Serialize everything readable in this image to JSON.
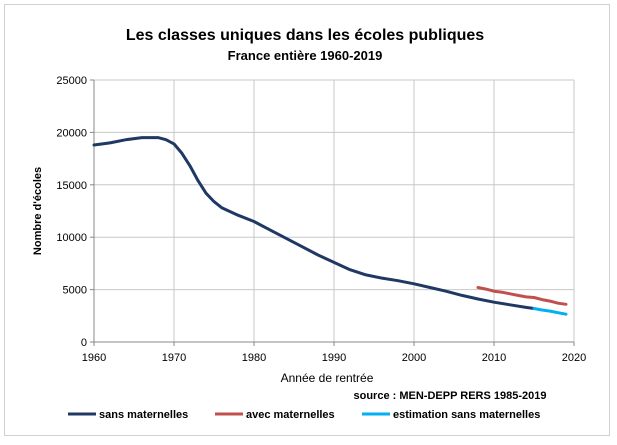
{
  "chart_data": {
    "type": "line",
    "title": "Les classes uniques dans les écoles publiques",
    "subtitle": "France entière 1960-2019",
    "xlabel": "Année de rentrée",
    "ylabel": "Nombre d'écoles",
    "xlim": [
      1960,
      2020
    ],
    "ylim": [
      0,
      25000
    ],
    "x_ticks": [
      "1960",
      "1970",
      "1980",
      "1990",
      "2000",
      "2010",
      "2020"
    ],
    "y_ticks": [
      "0",
      "5000",
      "10000",
      "15000",
      "20000",
      "25000"
    ],
    "source": "source : MEN-DEPP   RERS  1985-2019",
    "legend_position": "bottom",
    "grid": true,
    "series": [
      {
        "name": "sans maternelles",
        "color": "#1f3864",
        "x": [
          1960,
          1962,
          1964,
          1966,
          1968,
          1969,
          1970,
          1971,
          1972,
          1973,
          1974,
          1975,
          1976,
          1978,
          1980,
          1982,
          1985,
          1988,
          1990,
          1992,
          1994,
          1996,
          1998,
          2000,
          2002,
          2004,
          2006,
          2008,
          2010,
          2012,
          2014,
          2015
        ],
        "y": [
          18800,
          19000,
          19300,
          19500,
          19500,
          19300,
          18900,
          18000,
          16800,
          15400,
          14200,
          13400,
          12800,
          12100,
          11500,
          10700,
          9500,
          8300,
          7600,
          6900,
          6400,
          6100,
          5850,
          5550,
          5200,
          4850,
          4450,
          4100,
          3800,
          3550,
          3300,
          3200
        ]
      },
      {
        "name": "avec maternelles",
        "color": "#c0504d",
        "x": [
          2008,
          2009,
          2010,
          2011,
          2012,
          2013,
          2014,
          2015,
          2016,
          2017,
          2018,
          2019
        ],
        "y": [
          5200,
          5050,
          4850,
          4750,
          4600,
          4450,
          4300,
          4250,
          4050,
          3900,
          3700,
          3600
        ]
      },
      {
        "name": "estimation sans maternelles",
        "color": "#00b0f0",
        "x": [
          2015,
          2016,
          2017,
          2018,
          2019
        ],
        "y": [
          3200,
          3050,
          2950,
          2800,
          2650
        ]
      }
    ]
  }
}
